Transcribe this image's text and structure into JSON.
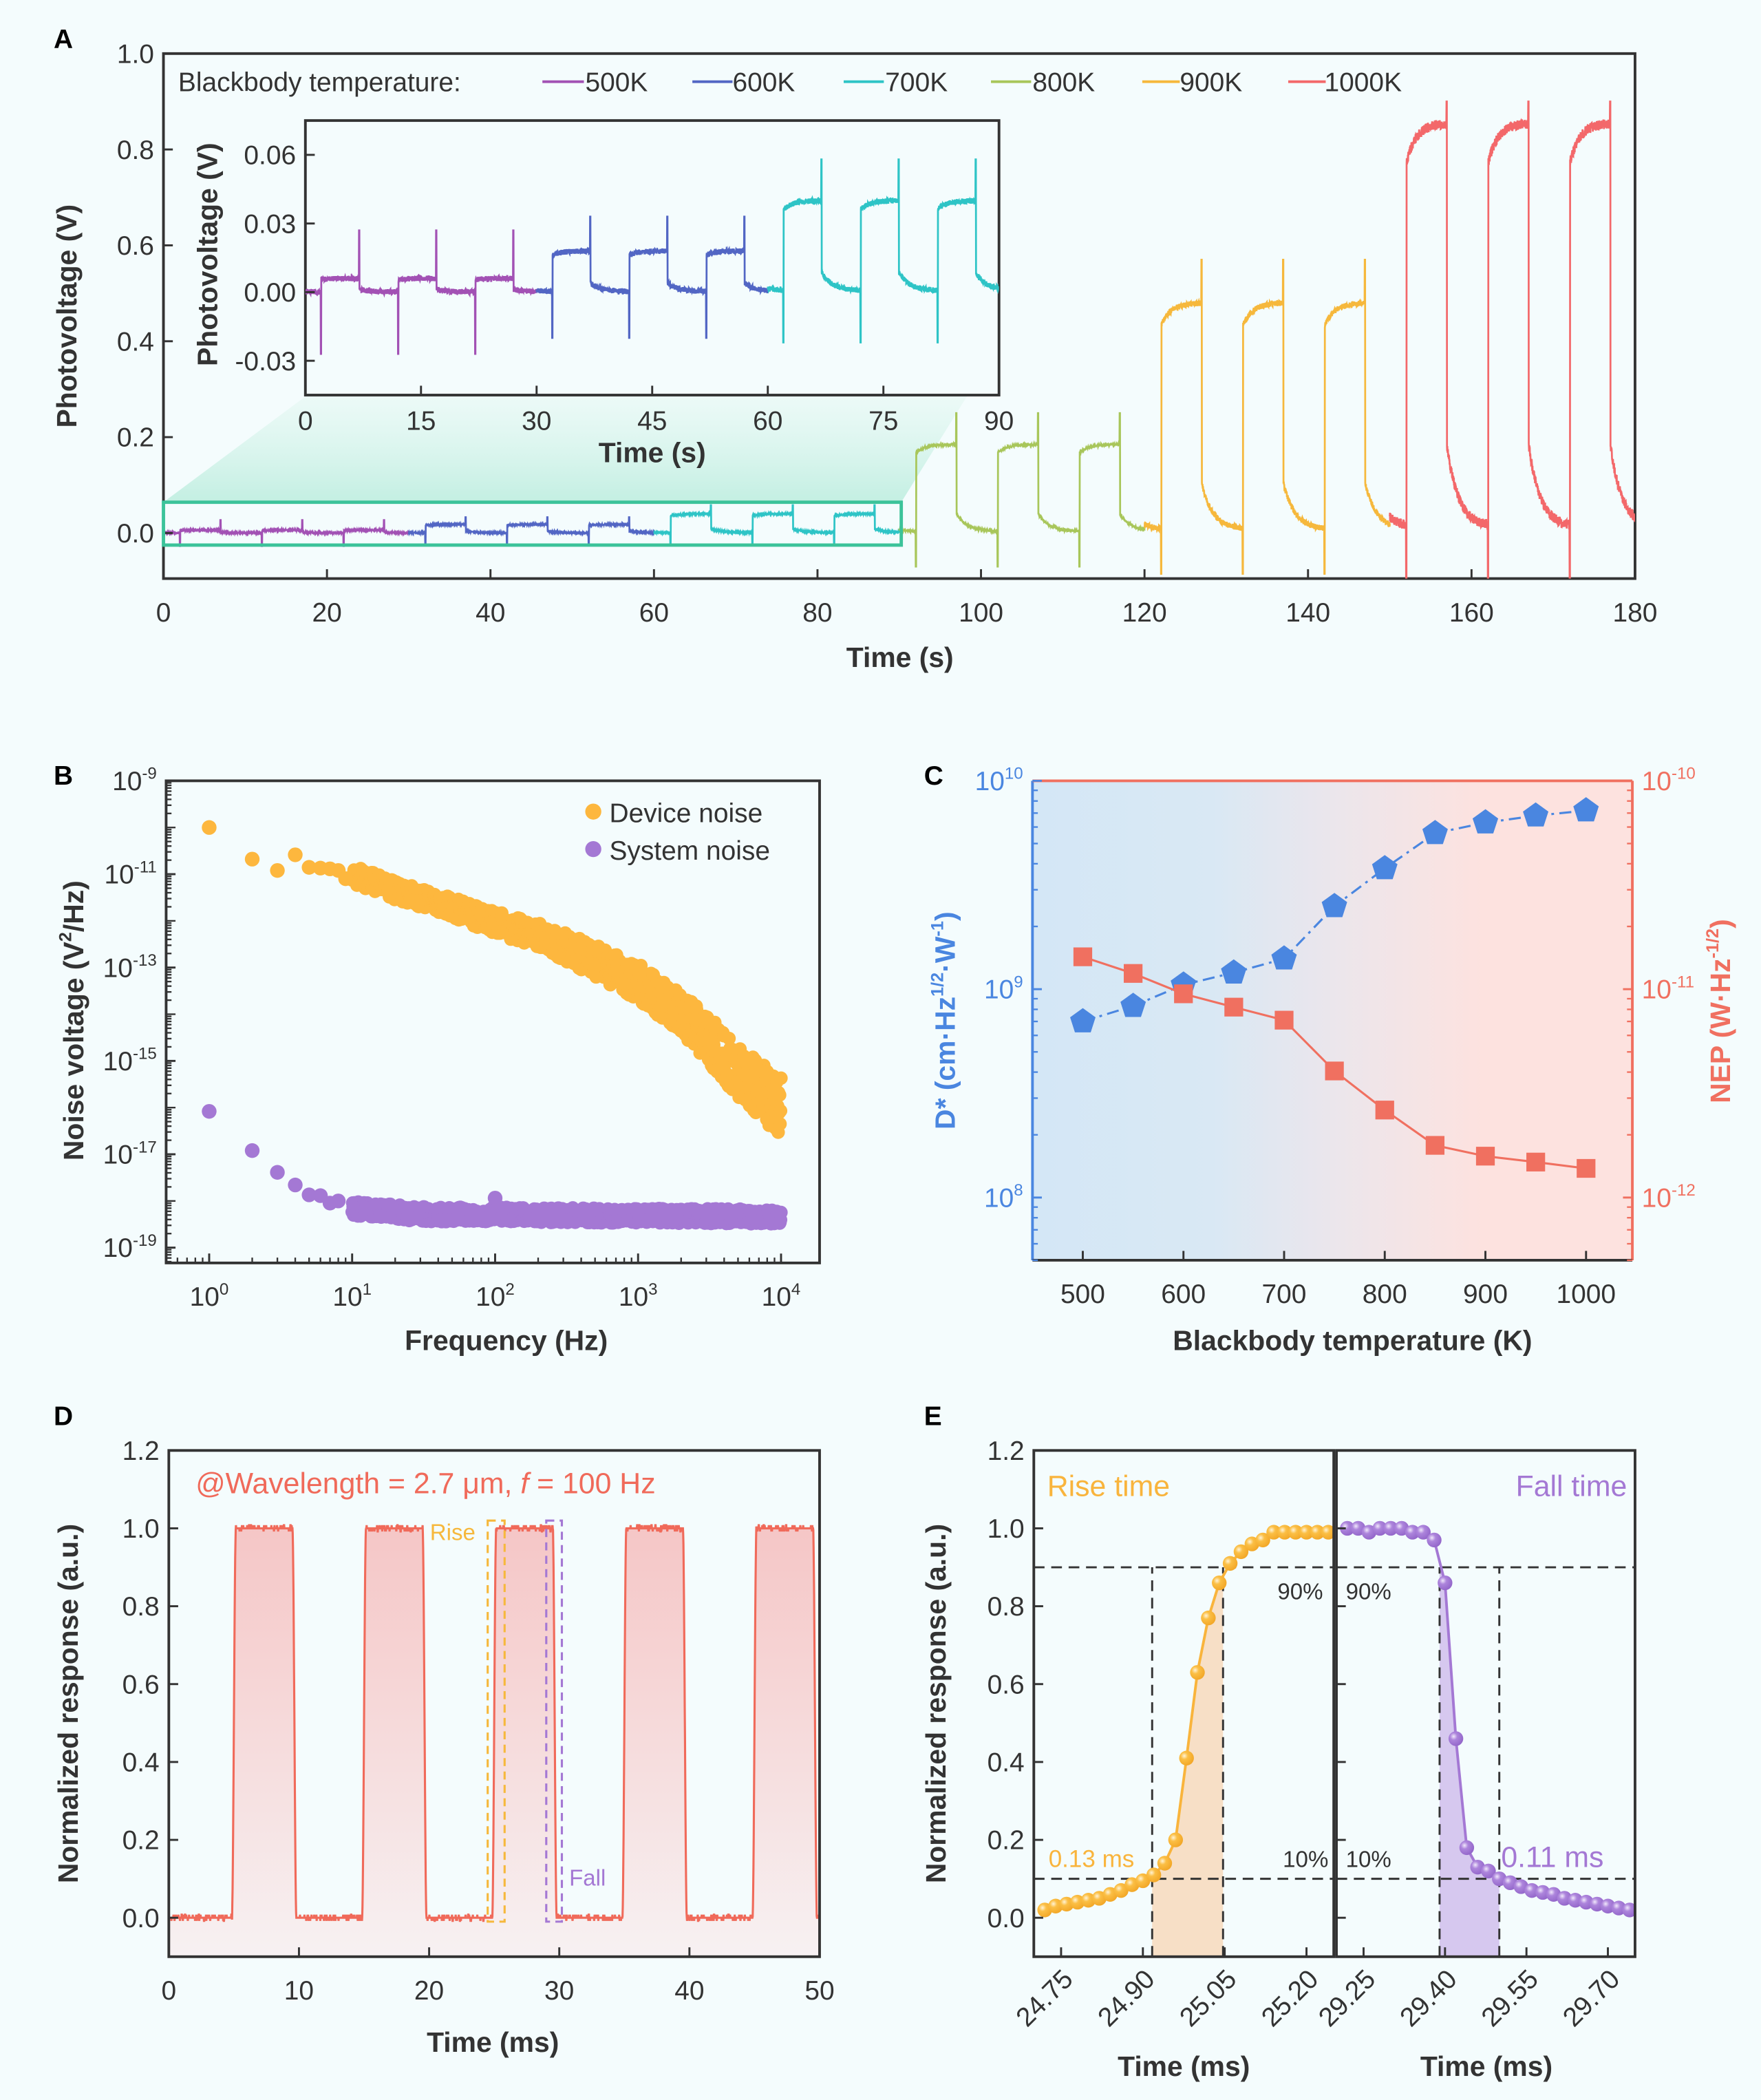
{
  "panel_labels": {
    "A": "A",
    "B": "B",
    "C": "C",
    "D": "D",
    "E": "E"
  },
  "chart_data": [
    {
      "panel": "A",
      "type": "line",
      "title": "",
      "xlabel": "Time (s)",
      "ylabel": "Photovoltage (V)",
      "xlim": [
        0,
        180
      ],
      "ylim": [
        -0.095,
        1.0
      ],
      "xticks": [
        0,
        20,
        40,
        60,
        80,
        100,
        120,
        140,
        160,
        180
      ],
      "xtick_labels": [
        "0",
        "20",
        "40",
        "60",
        "80",
        "100",
        "120",
        "140",
        "160",
        "180"
      ],
      "yticks": [
        0.0,
        0.2,
        0.4,
        0.6,
        0.8,
        1.0
      ],
      "ytick_labels": [
        "0.0",
        "0.2",
        "0.4",
        "0.6",
        "0.8",
        "1.0"
      ],
      "legend_title": "Blackbody temperature:",
      "legend_placement": "top",
      "period_s": 10,
      "light_on_s": [
        2,
        7
      ],
      "series": [
        {
          "name": "500K",
          "color": "#a251b4",
          "t_range": [
            0,
            30
          ],
          "on_level": 0.006,
          "spike_up": 0.027,
          "spike_down": -0.027
        },
        {
          "name": "600K",
          "color": "#5266c4",
          "t_range": [
            30,
            60
          ],
          "on_level": 0.018,
          "spike_up": 0.033,
          "spike_down": -0.02
        },
        {
          "name": "700K",
          "color": "#2ec4c6",
          "t_range": [
            60,
            90
          ],
          "on_level": 0.04,
          "spike_up": 0.058,
          "spike_down": -0.022
        },
        {
          "name": "800K",
          "color": "#a8c65a",
          "t_range": [
            90,
            120
          ],
          "on_level": 0.185,
          "spike_up": 0.25,
          "spike_down": -0.07
        },
        {
          "name": "900K",
          "color": "#f6b83c",
          "t_range": [
            120,
            150
          ],
          "on_level": 0.48,
          "spike_up": 0.57,
          "spike_down": -0.085
        },
        {
          "name": "1000K",
          "color": "#f3686a",
          "t_range": [
            150,
            180
          ],
          "on_level": 0.855,
          "spike_up": 0.9,
          "spike_down": -0.1
        }
      ],
      "inset": {
        "xlabel": "Time (s)",
        "ylabel": "Photovoltage (V)",
        "xlim": [
          0,
          90
        ],
        "ylim": [
          -0.045,
          0.075
        ],
        "xticks": [
          0,
          15,
          30,
          45,
          60,
          75,
          90
        ],
        "xtick_labels": [
          "0",
          "15",
          "30",
          "45",
          "60",
          "75",
          "90"
        ],
        "yticks": [
          -0.03,
          0.0,
          0.03,
          0.06
        ],
        "ytick_labels": [
          "-0.03",
          "0.00",
          "0.03",
          "0.06"
        ],
        "zoom_box_color": "#3cc39a"
      }
    },
    {
      "panel": "B",
      "type": "scatter",
      "title": "",
      "xlabel": "Frequency (Hz)",
      "ylabel": "Noise voltage (V^{2}/Hz)",
      "xscale": "log",
      "yscale": "log",
      "xlim": [
        0.5,
        18600
      ],
      "ylim": [
        4.7e-20,
        1e-09
      ],
      "xticks": [
        1,
        10,
        100,
        1000,
        10000
      ],
      "xtick_labels": [
        "10^{0}",
        "10^{1}",
        "10^{2}",
        "10^{3}",
        "10^{4}"
      ],
      "yticks": [
        1e-09,
        1e-11,
        1e-13,
        1e-15,
        1e-17,
        1e-19
      ],
      "ytick_labels": [
        "10^{-9}",
        "10^{-11}",
        "10^{-13}",
        "10^{-15}",
        "10^{-17}",
        "10^{-19}"
      ],
      "legend_placement": "top-right",
      "series": [
        {
          "name": "Device noise",
          "color": "#fdb73e",
          "points": [
            [
              1,
              1e-10
            ],
            [
              2,
              2.1e-11
            ],
            [
              3,
              1.2e-11
            ],
            [
              4,
              2.6e-11
            ],
            [
              5,
              1.4e-11
            ],
            [
              6,
              1.35e-11
            ],
            [
              7,
              1.3e-11
            ],
            [
              8,
              1.2e-11
            ],
            [
              9,
              8e-12
            ]
          ],
          "trend": [
            [
              10,
              1e-11
            ],
            [
              20,
              4.5e-12
            ],
            [
              50,
              2e-12
            ],
            [
              100,
              9e-13
            ],
            [
              200,
              5e-13
            ],
            [
              500,
              1.4e-13
            ],
            [
              1000,
              5e-14
            ],
            [
              2000,
              1e-14
            ],
            [
              3000,
              3.2e-15
            ],
            [
              5000,
              5.6e-16
            ],
            [
              10000,
              1.1e-16
            ]
          ]
        },
        {
          "name": "System noise",
          "color": "#a478d4",
          "points": [
            [
              1,
              8.3e-17
            ],
            [
              2,
              1.2e-17
            ],
            [
              3,
              4.1e-18
            ],
            [
              4,
              2.2e-18
            ],
            [
              5,
              1.35e-18
            ],
            [
              6,
              1.3e-18
            ],
            [
              7,
              9e-19
            ],
            [
              8,
              1e-18
            ],
            [
              100,
              1.15e-18
            ]
          ],
          "trend": [
            [
              10,
              6.9e-19
            ],
            [
              30,
              5.2e-19
            ],
            [
              10000,
              4.6e-19
            ]
          ]
        }
      ]
    },
    {
      "panel": "C",
      "type": "line",
      "title": "",
      "xlabel": "Blackbody temperature (K)",
      "ylabel_left": "D* (cm·Hz^{1/2}·W^{-1})",
      "ylabel_right": "NEP (W·Hz^{-1/2})",
      "xlim": [
        450,
        1046
      ],
      "ylim_left": [
        50000000.0,
        10000000000.0
      ],
      "ylim_right": [
        5e-13,
        1e-10
      ],
      "yscale": "log",
      "xticks": [
        500,
        600,
        700,
        800,
        900,
        1000
      ],
      "xtick_labels": [
        "500",
        "600",
        "700",
        "800",
        "900",
        "1000"
      ],
      "yticks_left": [
        100000000.0,
        1000000000.0,
        10000000000.0
      ],
      "ytick_labels_left": [
        "10^{8}",
        "10^{9}",
        "10^{10}"
      ],
      "yticks_right": [
        1e-12,
        1e-11,
        1e-10
      ],
      "ytick_labels_right": [
        "10^{-12}",
        "10^{-11}",
        "10^{-10}"
      ],
      "colors": {
        "left": "#4a86e0",
        "right": "#f07060",
        "bg_left": "#d4e7f6",
        "bg_right": "#fde2df"
      },
      "x": [
        500,
        550,
        600,
        650,
        700,
        750,
        800,
        850,
        900,
        950,
        1000
      ],
      "series": [
        {
          "name": "D*",
          "axis": "left",
          "marker": "pentagon",
          "line": "dash-dot",
          "color": "#4a86e0",
          "values": [
            700000000.0,
            830000000.0,
            1050000000.0,
            1200000000.0,
            1400000000.0,
            2500000000.0,
            3800000000.0,
            5600000000.0,
            6300000000.0,
            6800000000.0,
            7200000000.0
          ]
        },
        {
          "name": "NEP",
          "axis": "right",
          "marker": "square",
          "line": "solid",
          "color": "#f07060",
          "values": [
            1.43e-11,
            1.19e-11,
            9.5e-12,
            8.2e-12,
            7.1e-12,
            4.05e-12,
            2.63e-12,
            1.78e-12,
            1.58e-12,
            1.48e-12,
            1.38e-12
          ]
        }
      ]
    },
    {
      "panel": "D",
      "type": "area",
      "title": "",
      "annotation": "@Wavelength = 2.7 μm, _{f} = 100 Hz",
      "xlabel": "Time (ms)",
      "ylabel": "Normalized response (a.u.)",
      "xlim": [
        0,
        50
      ],
      "ylim": [
        -0.1,
        1.2
      ],
      "xticks": [
        0,
        10,
        20,
        30,
        40,
        50
      ],
      "xtick_labels": [
        "0",
        "10",
        "20",
        "30",
        "40",
        "50"
      ],
      "yticks": [
        0.0,
        0.2,
        0.4,
        0.6,
        0.8,
        1.0,
        1.2
      ],
      "ytick_labels": [
        "0.0",
        "0.2",
        "0.4",
        "0.6",
        "0.8",
        "1.0",
        "1.2"
      ],
      "color": "#f06a5a",
      "high": 1.0,
      "low": 0.0,
      "pulses_ms": [
        [
          5.0,
          9.6
        ],
        [
          15.0,
          19.6
        ],
        [
          25.0,
          29.6
        ],
        [
          35.0,
          39.6
        ],
        [
          45.0,
          49.6
        ]
      ],
      "boxes": [
        {
          "label": "Rise",
          "color": "#f6b83c",
          "x": [
            24.5,
            25.8
          ],
          "y": [
            -0.01,
            1.02
          ]
        },
        {
          "label": "Fall",
          "color": "#a478d4",
          "x": [
            29.0,
            30.2
          ],
          "y": [
            -0.01,
            1.02
          ]
        }
      ]
    },
    {
      "panel": "E",
      "type": "line",
      "title": "",
      "ylabel": "Normalized response (a.u.)",
      "ylim": [
        -0.1,
        1.2
      ],
      "yticks": [
        0.0,
        0.2,
        0.4,
        0.6,
        0.8,
        1.0,
        1.2
      ],
      "ytick_labels": [
        "0.0",
        "0.2",
        "0.4",
        "0.6",
        "0.8",
        "1.0",
        "1.2"
      ],
      "thresholds": {
        "high": 0.9,
        "low": 0.1,
        "high_label": "90%",
        "low_label": "10%"
      },
      "subplots": [
        {
          "label": "Rise time",
          "time_label": "0.13 ms",
          "color": "#f9b43c",
          "shade": "#f7dfc6",
          "xlabel": "Time (ms)",
          "xlim": [
            24.7,
            25.25
          ],
          "xticks": [
            24.75,
            24.9,
            25.05,
            25.2
          ],
          "xtick_labels": [
            "24.75",
            "24.90",
            "25.05",
            "25.20"
          ],
          "span": [
            24.917,
            25.047
          ],
          "x": [
            24.72,
            24.74,
            24.76,
            24.78,
            24.8,
            24.82,
            24.84,
            24.86,
            24.88,
            24.9,
            24.92,
            24.94,
            24.96,
            24.98,
            25.0,
            25.02,
            25.04,
            25.06,
            25.08,
            25.1,
            25.12,
            25.14,
            25.16,
            25.18,
            25.2,
            25.22,
            25.24
          ],
          "y": [
            0.02,
            0.03,
            0.035,
            0.04,
            0.045,
            0.05,
            0.06,
            0.07,
            0.085,
            0.095,
            0.11,
            0.14,
            0.2,
            0.41,
            0.63,
            0.77,
            0.86,
            0.91,
            0.94,
            0.96,
            0.97,
            0.99,
            0.99,
            0.99,
            0.99,
            0.99,
            0.99
          ]
        },
        {
          "label": "Fall time",
          "time_label": "0.11 ms",
          "color": "#a478d4",
          "shade": "#d6c8ef",
          "xlabel": "Time (ms)",
          "xlim": [
            29.2,
            29.75
          ],
          "xticks": [
            29.25,
            29.4,
            29.55,
            29.7
          ],
          "xtick_labels": [
            "29.25",
            "29.40",
            "29.55",
            "29.70"
          ],
          "span": [
            29.39,
            29.5
          ],
          "x": [
            29.22,
            29.24,
            29.26,
            29.28,
            29.3,
            29.32,
            29.34,
            29.36,
            29.38,
            29.4,
            29.42,
            29.44,
            29.46,
            29.48,
            29.5,
            29.52,
            29.54,
            29.56,
            29.58,
            29.6,
            29.62,
            29.64,
            29.66,
            29.68,
            29.7,
            29.72,
            29.74
          ],
          "y": [
            1.0,
            1.0,
            0.99,
            1.0,
            1.0,
            1.0,
            0.99,
            0.99,
            0.97,
            0.86,
            0.46,
            0.18,
            0.13,
            0.12,
            0.1,
            0.09,
            0.08,
            0.07,
            0.065,
            0.06,
            0.05,
            0.045,
            0.04,
            0.035,
            0.03,
            0.025,
            0.02
          ]
        }
      ]
    }
  ]
}
